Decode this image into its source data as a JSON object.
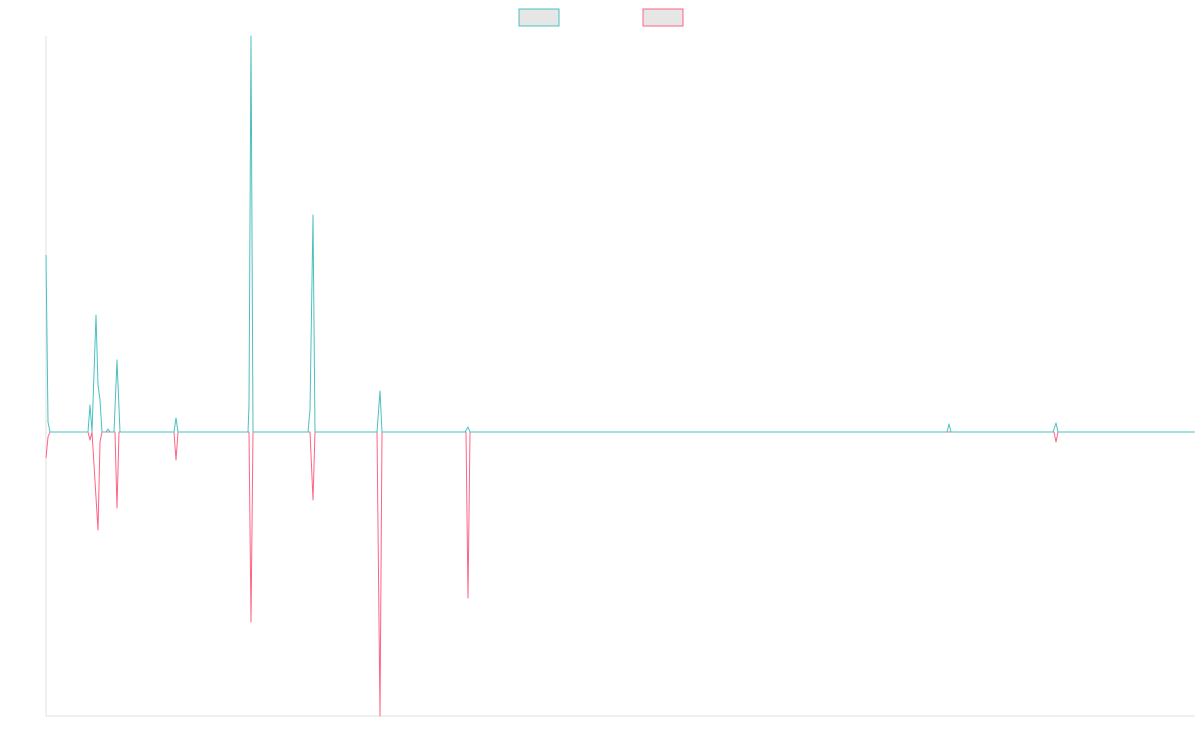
{
  "chart_data": {
    "type": "line",
    "xlim": [
      0,
      1149
    ],
    "ylim": [
      -284,
      396
    ],
    "legend": "top",
    "series": [
      {
        "color": "#4bc0c0",
        "x": [
          0,
          2,
          4,
          42,
          44,
          46,
          50,
          52,
          54,
          56,
          60,
          62,
          64,
          68,
          71,
          74,
          128,
          130,
          132,
          202,
          203,
          205,
          207,
          262,
          264,
          267,
          269,
          331,
          334,
          336,
          419,
          422,
          424,
          901,
          903,
          905,
          1007,
          1010,
          1012,
          1149
        ],
        "values": [
          177,
          10,
          0,
          0,
          27,
          0,
          117,
          47,
          32,
          0,
          0,
          3,
          0,
          0,
          72,
          0,
          0,
          14,
          0,
          0,
          27,
          396,
          0,
          0,
          22,
          217,
          0,
          0,
          41,
          0,
          0,
          5,
          0,
          0,
          8,
          0,
          0,
          9,
          0,
          0
        ]
      },
      {
        "color": "#ff6384",
        "x": [
          0,
          2,
          4,
          42,
          44,
          46,
          52,
          54,
          56,
          69,
          71,
          73,
          128,
          130,
          132,
          203,
          205,
          207,
          264,
          267,
          269,
          331,
          334,
          336,
          420,
          422,
          424,
          1008,
          1010,
          1012,
          1149
        ],
        "values": [
          -26,
          -5,
          0,
          0,
          -8,
          0,
          -98,
          -10,
          0,
          0,
          -76,
          0,
          0,
          -28,
          0,
          0,
          -190,
          0,
          0,
          -68,
          0,
          0,
          -284,
          0,
          0,
          -166,
          0,
          0,
          -10,
          0,
          0
        ]
      }
    ]
  }
}
